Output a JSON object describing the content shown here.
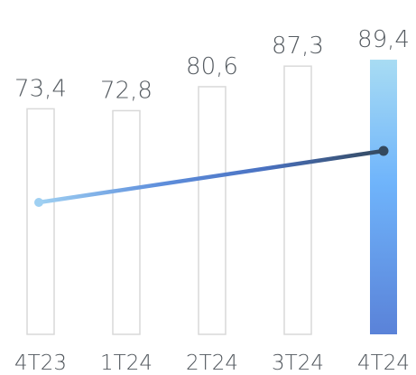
{
  "chart_data": {
    "type": "bar",
    "categories": [
      "4T23",
      "1T24",
      "2T24",
      "3T24",
      "4T24"
    ],
    "values": [
      73.4,
      72.8,
      80.6,
      87.3,
      89.4
    ],
    "value_labels": [
      "73,4",
      "72,8",
      "80,6",
      "87,3",
      "89,4"
    ],
    "highlight_index": 4,
    "ylim": [
      0,
      95
    ],
    "line": {
      "x_categories": [
        "4T23",
        "4T24"
      ],
      "start_color": "#9fd0f2",
      "end_color": "#34495e"
    },
    "grid": false,
    "legend": "none",
    "colors": {
      "bar_outline": "#d9d9d9",
      "highlight_top": "#a8dcf3",
      "highlight_mid": "#6fb4fb",
      "highlight_bottom": "#5a82d8",
      "text": "#555b61"
    }
  }
}
